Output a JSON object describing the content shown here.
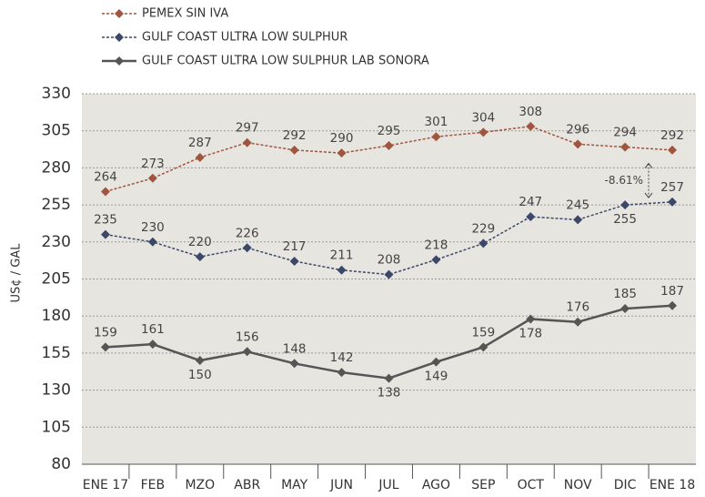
{
  "chart_data": {
    "type": "line",
    "y_label": "US¢ / GAL",
    "categories": [
      "ENE 17",
      "FEB",
      "MZO",
      "ABR",
      "MAY",
      "JUN",
      "JUL",
      "AGO",
      "SEP",
      "OCT",
      "NOV",
      "DIC",
      "ENE 18"
    ],
    "series": [
      {
        "name": "PEMEX SIN IVA",
        "color": "#a0553f",
        "dash": true,
        "values": [
          264,
          273,
          287,
          297,
          292,
          290,
          295,
          301,
          304,
          308,
          296,
          294,
          292
        ]
      },
      {
        "name": "GULF COAST ULTRA LOW SULPHUR",
        "color": "#3c4869",
        "dash": true,
        "values": [
          235,
          230,
          220,
          226,
          217,
          211,
          208,
          218,
          229,
          247,
          245,
          255,
          257
        ]
      },
      {
        "name": "GULF COAST ULTRA LOW SULPHUR LAB SONORA",
        "color": "#555555",
        "dash": false,
        "values": [
          159,
          161,
          150,
          156,
          148,
          142,
          138,
          149,
          159,
          178,
          176,
          185,
          187
        ]
      }
    ],
    "annotation": "-8.61%",
    "ylim": [
      80,
      330
    ],
    "yticks": [
      80,
      105,
      130,
      155,
      180,
      205,
      230,
      255,
      280,
      305,
      330
    ],
    "grid": true
  }
}
